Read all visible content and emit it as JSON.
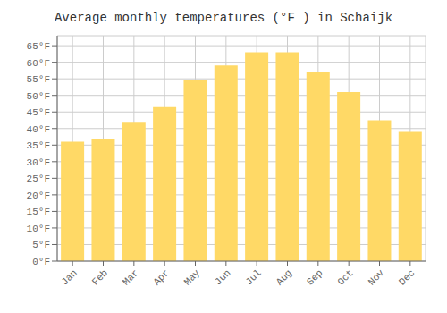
{
  "chart_data": {
    "type": "bar",
    "title": "Average monthly temperatures (°F ) in Schaijk",
    "categories": [
      "Jan",
      "Feb",
      "Mar",
      "Apr",
      "May",
      "Jun",
      "Jul",
      "Aug",
      "Sep",
      "Oct",
      "Nov",
      "Dec"
    ],
    "values": [
      36,
      37,
      42,
      46.5,
      54.5,
      59,
      63,
      63,
      57,
      51,
      42.5,
      39
    ],
    "color": "#FFD966",
    "ylim": [
      0,
      68
    ],
    "yticks": [
      {
        "value": 0,
        "label": "0°F"
      },
      {
        "value": 5,
        "label": "5°F"
      },
      {
        "value": 10,
        "label": "10°F"
      },
      {
        "value": 15,
        "label": "15°F"
      },
      {
        "value": 20,
        "label": "20°F"
      },
      {
        "value": 25,
        "label": "25°F"
      },
      {
        "value": 30,
        "label": "30°F"
      },
      {
        "value": 35,
        "label": "35°F"
      },
      {
        "value": 40,
        "label": "40°F"
      },
      {
        "value": 45,
        "label": "45°F"
      },
      {
        "value": 50,
        "label": "50°F"
      },
      {
        "value": 55,
        "label": "55°F"
      },
      {
        "value": 60,
        "label": "60°F"
      },
      {
        "value": 65,
        "label": "65°F"
      }
    ],
    "grid": true
  }
}
